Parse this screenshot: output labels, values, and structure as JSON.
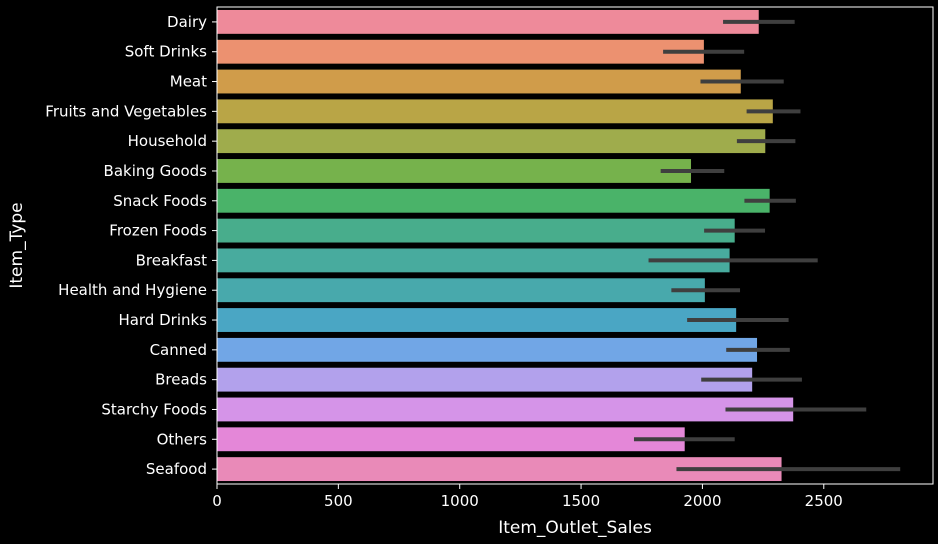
{
  "chart_data": {
    "type": "bar",
    "orientation": "horizontal",
    "xlabel": "Item_Outlet_Sales",
    "ylabel": "Item_Type",
    "xlim": [
      0,
      2950
    ],
    "xticks": [
      0,
      500,
      1000,
      1500,
      2000,
      2500
    ],
    "grid": false,
    "background": "#000000",
    "frame_color": "#ffffff",
    "error_bar_color": "#3f3f3f",
    "categories": [
      "Dairy",
      "Soft Drinks",
      "Meat",
      "Fruits and Vegetables",
      "Household",
      "Baking Goods",
      "Snack Foods",
      "Frozen Foods",
      "Breakfast",
      "Health and Hygiene",
      "Hard Drinks",
      "Canned",
      "Breads",
      "Starchy Foods",
      "Others",
      "Seafood"
    ],
    "values": [
      2232,
      2006,
      2158,
      2290,
      2259,
      1953,
      2277,
      2133,
      2112,
      2010,
      2139,
      2225,
      2205,
      2374,
      1927,
      2326
    ],
    "ci_low": [
      2085,
      1838,
      1992,
      2182,
      2142,
      1828,
      2173,
      2007,
      1778,
      1872,
      1937,
      2098,
      1995,
      2095,
      1718,
      1893
    ],
    "ci_high": [
      2380,
      2172,
      2335,
      2404,
      2383,
      2090,
      2385,
      2258,
      2475,
      2155,
      2355,
      2360,
      2410,
      2675,
      2133,
      2815
    ],
    "colors": [
      "#ee8a9a",
      "#ec9170",
      "#d09c4a",
      "#b9a546",
      "#9fac4c",
      "#76b24c",
      "#4ab369",
      "#48ad8c",
      "#48ab9e",
      "#48a9ac",
      "#4aa6c4",
      "#71a6e6",
      "#b2a1ec",
      "#d594e8",
      "#e487d8",
      "#e98ab8"
    ]
  }
}
